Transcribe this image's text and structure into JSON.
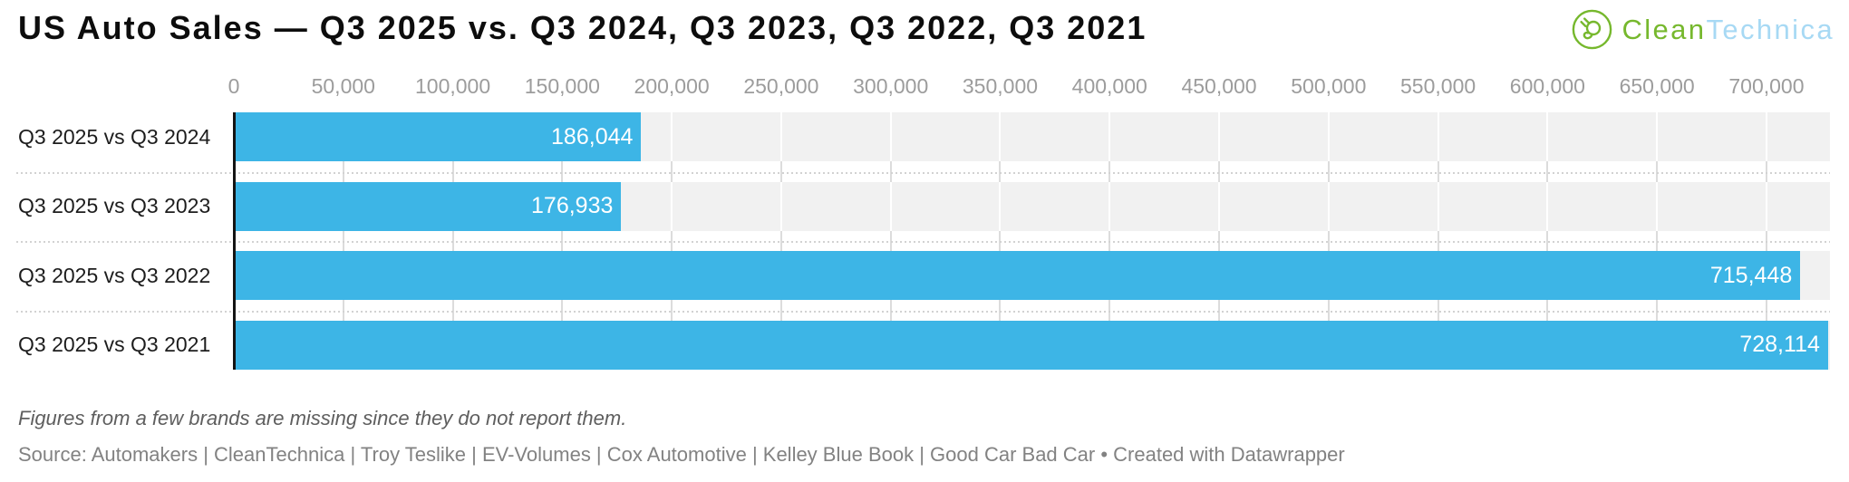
{
  "header": {
    "title": "US Auto Sales — Q3 2025 vs. Q3 2024, Q3 2023, Q3 2022, Q3 2021",
    "logo": {
      "text_green": "Clean",
      "text_blue": "Technica",
      "green_color": "#76b82d",
      "blue_color": "#a7d9f4"
    }
  },
  "chart_data": {
    "type": "bar",
    "orientation": "horizontal",
    "title": "US Auto Sales — Q3 2025 vs. Q3 2024, Q3 2023, Q3 2022, Q3 2021",
    "categories": [
      "Q3 2025 vs Q3 2024",
      "Q3 2025 vs Q3 2023",
      "Q3 2025 vs Q3 2022",
      "Q3 2025 vs Q3 2021"
    ],
    "values": [
      186044,
      176933,
      715448,
      728114
    ],
    "value_labels": [
      "186,044",
      "176,933",
      "715,448",
      "728,114"
    ],
    "xlabel": "",
    "ylabel": "",
    "xlim": [
      0,
      729000
    ],
    "x_ticks": [
      0,
      50000,
      100000,
      150000,
      200000,
      250000,
      300000,
      350000,
      400000,
      450000,
      500000,
      550000,
      600000,
      650000,
      700000
    ],
    "x_tick_labels": [
      "0",
      "50,000",
      "100,000",
      "150,000",
      "200,000",
      "250,000",
      "300,000",
      "350,000",
      "400,000",
      "450,000",
      "500,000",
      "550,000",
      "600,000",
      "650,000",
      "700,000"
    ],
    "grid": true,
    "legend": false,
    "bar_color": "#3db5e6",
    "band_color": "#f1f1f1",
    "value_label_color": "#ffffff",
    "tick_label_color": "#9c9c9c"
  },
  "footer": {
    "note": "Figures from a few brands are missing since they do not report them.",
    "source": "Source: Automakers | CleanTechnica | Troy Teslike | EV-Volumes | Cox Automotive | Kelley Blue Book | Good Car Bad Car • Created with Datawrapper"
  }
}
